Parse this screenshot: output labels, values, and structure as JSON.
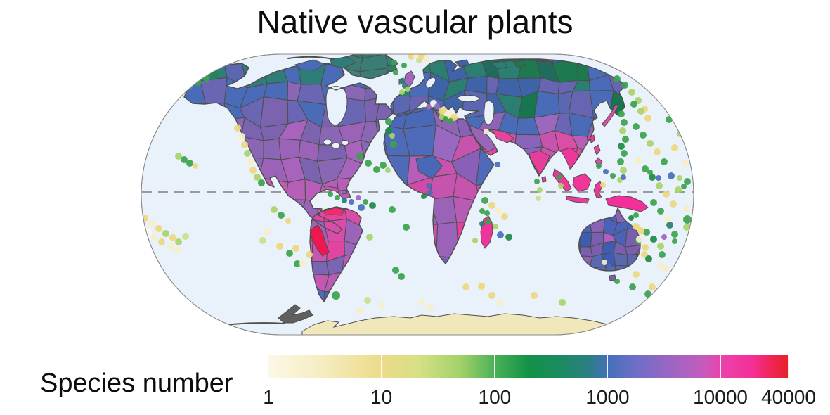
{
  "title": "Native vascular plants",
  "legend": {
    "label": "Species number",
    "scale": "log10",
    "min": 1,
    "max": 40000,
    "ticks": [
      {
        "label": "1",
        "f": 0.0
      },
      {
        "label": "10",
        "f": 0.217
      },
      {
        "label": "100",
        "f": 0.435
      },
      {
        "label": "1000",
        "f": 0.652
      },
      {
        "label": "10000",
        "f": 0.869
      },
      {
        "label": "40000",
        "f": 1.0
      }
    ],
    "gradient": [
      {
        "f": 0.0,
        "c": "#fcf8e6"
      },
      {
        "f": 0.1,
        "c": "#f6edc2"
      },
      {
        "f": 0.217,
        "c": "#eddb8a"
      },
      {
        "f": 0.29,
        "c": "#d5e085"
      },
      {
        "f": 0.37,
        "c": "#a3d168"
      },
      {
        "f": 0.435,
        "c": "#4bb158"
      },
      {
        "f": 0.5,
        "c": "#129247"
      },
      {
        "f": 0.565,
        "c": "#1c8a62"
      },
      {
        "f": 0.615,
        "c": "#2a7f84"
      },
      {
        "f": 0.652,
        "c": "#4270b8"
      },
      {
        "f": 0.7,
        "c": "#6a6fc6"
      },
      {
        "f": 0.775,
        "c": "#9d65c3"
      },
      {
        "f": 0.835,
        "c": "#c35cbd"
      },
      {
        "f": 0.869,
        "c": "#e844ab"
      },
      {
        "f": 0.93,
        "c": "#f62f97"
      },
      {
        "f": 0.97,
        "c": "#ee2450"
      },
      {
        "f": 1.0,
        "c": "#e82128"
      }
    ]
  },
  "map": {
    "ocean": "#e9f1fa",
    "outline": "#8a8a8a",
    "coast": "#4d4d4d",
    "equator": "#9a9a9a",
    "dot_colors": {
      "g": "#3aa34c",
      "dg": "#1e8a45",
      "lg": "#a8d467",
      "pg": "#cbe08a",
      "y": "#ecd87e",
      "c": "#f6efca",
      "w": "#fbf8e8",
      "b": "#4a6cb8",
      "p": "#9a68c0",
      "t": "#2a7f72",
      "m": "#d94fa6"
    },
    "regions": {
      "north-america": {
        "cell": 28,
        "bands": [
          [
            "#2f7d78",
            "#4a6cb8",
            "#5b67b0",
            "#3b7d74"
          ],
          [
            "#6b66b4",
            "#8a67b4",
            "#4a6cb8",
            "#7b63b0"
          ],
          [
            "#9a63b8",
            "#8a67b4",
            "#a863bc",
            "#7b63b0"
          ],
          [
            "#b75fb8",
            "#c45cae",
            "#9a63b8",
            "#c25fb4"
          ],
          [
            "#d14fa8",
            "#c94fa0",
            "#dd4aa4",
            "#c45cae"
          ]
        ]
      },
      "greenland": {
        "cell": 30,
        "bands": [
          [
            "#3b7d74",
            "#35766b",
            "#41837a"
          ]
        ]
      },
      "south-america": {
        "cell": 24,
        "bands": [
          [
            "#e0459f",
            "#c653ac",
            "#d94da8",
            "#b75fb8"
          ],
          [
            "#d94da8",
            "#c258b1",
            "#9c63bb",
            "#e0459f"
          ],
          [
            "#9c63bb",
            "#b85bb4",
            "#c258b1",
            "#7a64b4"
          ],
          [
            "#5a67b4",
            "#4a68b0",
            "#7a64b4",
            "#3f68b0"
          ]
        ]
      },
      "eurasia": {
        "cell": 26,
        "bands": [
          [
            "#2a7f72",
            "#1d7a4f",
            "#3f63a8",
            "#2f7d78",
            "#4a6cb8",
            "#1f6b5e"
          ],
          [
            "#4a6cb8",
            "#5b67b0",
            "#2a7f72",
            "#6765b2",
            "#3f63a8",
            "#17764d"
          ],
          [
            "#8b64b4",
            "#6b66b4",
            "#9a68bc",
            "#4a6cb8",
            "#7b63b0",
            "#9c68c0"
          ],
          [
            "#c653ac",
            "#9a64b8",
            "#e8449f",
            "#8a63bc",
            "#b75fb8",
            "#d94fa6"
          ],
          [
            "#e83e9b",
            "#f0369a",
            "#d94fa6",
            "#c653ac",
            "#e8449f",
            "#ef3b99"
          ]
        ]
      },
      "africa": {
        "cell": 34,
        "bands": [
          [
            "#8e64b4",
            "#9a68c0",
            "#4a68b8",
            "#8a5fb8",
            "#9c64b8"
          ],
          [
            "#4f6ab8",
            "#9a68c0",
            "#c653ae",
            "#8a5fb8",
            "#b75fb8"
          ],
          [
            "#e33d9c",
            "#d14aa8",
            "#e03fa0",
            "#c653ae",
            "#ef3b99"
          ],
          [
            "#c653ae",
            "#9a63b8",
            "#e83f9f",
            "#b85bb4",
            "#d14aa8"
          ],
          [
            "#4a68b4",
            "#7a5fb0",
            "#9a63b8",
            "#1d8a50",
            "#3f68b0"
          ]
        ]
      },
      "australia": {
        "cell": 17,
        "bands": [
          [
            "#8a63b4",
            "#7a5fae",
            "#4a63b8",
            "#2a7f80"
          ],
          [
            "#4a63b8",
            "#3f5cb0",
            "#b35fc0",
            "#7a5fae"
          ],
          [
            "#3f5cb0",
            "#5b67b0",
            "#8a63b4",
            "#4a63b8"
          ]
        ]
      }
    },
    "patches": {
      "peru": "#f0164e",
      "venezuela": "#ef2d6d",
      "india": "#e83e9b",
      "indochina": "#f0369a",
      "arabia": "#9a64b8",
      "iran": "#e8449f",
      "sahara-blue": "#4a68b8",
      "madagascar": "#ef359c",
      "new-guinea": "#f3309a",
      "borneo": "#f0369a",
      "sumatra": "#f0369a",
      "java": "#e83e9b",
      "sulawesi": "#f0369a",
      "philippines-1": "#e0459f",
      "philippines-2": "#d94fa6",
      "taiwan": "#f0369a",
      "japan": "#d94fa6",
      "cuba": "#c653ac",
      "hispaniola": "#9a68c0",
      "uk": "#a565bb",
      "ireland": "#a565bb",
      "iceland": "#2f8060",
      "new-zealand-1": "#4a6bb4",
      "new-zealand-2": "#4a6bb4",
      "tasmania": "#7a5fae",
      "sri-lanka": "#e0459f",
      "antarctica": "#f0e7ba",
      "antarctic-peninsula": "#5f5f5f",
      "arctic-1": "#2a7f72",
      "arctic-2": "#1d7a4f",
      "arctic-3": "#3f63a8",
      "can-arctic-1": "#4a6cb8",
      "can-arctic-2": "#2f7d78"
    },
    "dots": [
      [
        207,
        160,
        5,
        "g"
      ],
      [
        216,
        152,
        5,
        "g"
      ],
      [
        226,
        146,
        5,
        "g"
      ],
      [
        237,
        140,
        5,
        "g"
      ],
      [
        248,
        134,
        5,
        "dg"
      ],
      [
        259,
        128,
        5,
        "g"
      ],
      [
        270,
        122,
        5,
        "g"
      ],
      [
        282,
        117,
        5,
        "g"
      ],
      [
        294,
        112,
        5,
        "g"
      ],
      [
        306,
        107,
        5,
        "dg"
      ],
      [
        878,
        112,
        5,
        "g"
      ],
      [
        889,
        121,
        5,
        "g"
      ],
      [
        899,
        131,
        5,
        "lg"
      ],
      [
        908,
        143,
        5,
        "lg"
      ],
      [
        917,
        155,
        5,
        "y"
      ],
      [
        884,
        162,
        5,
        "g"
      ],
      [
        888,
        174,
        5,
        "g"
      ],
      [
        886,
        186,
        5,
        "lg"
      ],
      [
        890,
        198,
        5,
        "g"
      ],
      [
        884,
        208,
        5,
        "dg"
      ],
      [
        888,
        218,
        5,
        "g"
      ],
      [
        883,
        230,
        5,
        "g"
      ],
      [
        887,
        242,
        5,
        "lg"
      ],
      [
        254,
        222,
        5,
        "lg"
      ],
      [
        262,
        227,
        5,
        "g"
      ],
      [
        270,
        232,
        5,
        "g"
      ],
      [
        278,
        236,
        4,
        "y"
      ],
      [
        338,
        182,
        5,
        "y"
      ],
      [
        344,
        194,
        5,
        "c"
      ],
      [
        348,
        206,
        5,
        "y"
      ],
      [
        352,
        218,
        5,
        "lg"
      ],
      [
        356,
        230,
        5,
        "c"
      ],
      [
        360,
        242,
        5,
        "y"
      ],
      [
        366,
        252,
        5,
        "lg"
      ],
      [
        372,
        260,
        5,
        "g"
      ],
      [
        196,
        302,
        5,
        "c"
      ],
      [
        206,
        310,
        5,
        "y"
      ],
      [
        216,
        318,
        5,
        "c"
      ],
      [
        226,
        325,
        5,
        "y"
      ],
      [
        236,
        332,
        5,
        "lg"
      ],
      [
        246,
        338,
        5,
        "y"
      ],
      [
        210,
        330,
        6,
        "w"
      ],
      [
        220,
        337,
        5,
        "c"
      ],
      [
        230,
        344,
        5,
        "y"
      ],
      [
        243,
        350,
        5,
        "c"
      ],
      [
        254,
        344,
        5,
        "lg"
      ],
      [
        264,
        336,
        5,
        "pg"
      ],
      [
        200,
        344,
        5,
        "y"
      ],
      [
        252,
        356,
        5,
        "c"
      ],
      [
        390,
        298,
        5,
        "lg"
      ],
      [
        400,
        306,
        5,
        "g"
      ],
      [
        410,
        314,
        4,
        "y"
      ],
      [
        380,
        330,
        5,
        "c"
      ],
      [
        374,
        342,
        5,
        "pg"
      ],
      [
        398,
        350,
        5,
        "y"
      ],
      [
        412,
        360,
        5,
        "g"
      ],
      [
        421,
        353,
        5,
        "y"
      ],
      [
        440,
        362,
        5,
        "y"
      ],
      [
        423,
        375,
        5,
        "g"
      ],
      [
        431,
        375,
        5,
        "c"
      ],
      [
        478,
        420,
        6,
        "g"
      ],
      [
        523,
        427,
        5,
        "pg"
      ],
      [
        543,
        434,
        5,
        "c"
      ],
      [
        511,
        441,
        5,
        "c"
      ],
      [
        470,
        276,
        4,
        "g"
      ],
      [
        480,
        281,
        4,
        "g"
      ],
      [
        490,
        285,
        4,
        "t"
      ],
      [
        500,
        287,
        4,
        "b"
      ],
      [
        510,
        281,
        4,
        "p"
      ],
      [
        520,
        287,
        4,
        "g"
      ],
      [
        530,
        292,
        5,
        "dg"
      ],
      [
        514,
        295,
        5,
        "b"
      ],
      [
        512,
        222,
        5,
        "g"
      ],
      [
        524,
        232,
        5,
        "g"
      ],
      [
        536,
        241,
        5,
        "g"
      ],
      [
        560,
        205,
        5,
        "g"
      ],
      [
        558,
        193,
        4,
        "lg"
      ],
      [
        553,
        173,
        5,
        "g"
      ],
      [
        553,
        186,
        5,
        "dg"
      ],
      [
        545,
        235,
        5,
        "g"
      ],
      [
        552,
        242,
        4,
        "lg"
      ],
      [
        610,
        264,
        4,
        "b"
      ],
      [
        612,
        274,
        4,
        "b"
      ],
      [
        603,
        279,
        4,
        "dg"
      ],
      [
        558,
        298,
        5,
        "g"
      ],
      [
        578,
        323,
        5,
        "g"
      ],
      [
        526,
        337,
        5,
        "lg"
      ],
      [
        563,
        384,
        5,
        "g"
      ],
      [
        571,
        393,
        5,
        "g"
      ],
      [
        600,
        430,
        5,
        "c"
      ],
      [
        612,
        438,
        5,
        "c"
      ],
      [
        585,
        80,
        5,
        "y"
      ],
      [
        592,
        78,
        5,
        "c"
      ],
      [
        600,
        80,
        5,
        "y"
      ],
      [
        607,
        84,
        5,
        "c"
      ],
      [
        596,
        86,
        4,
        "pg"
      ],
      [
        561,
        89,
        4,
        "g"
      ],
      [
        563,
        103,
        4,
        "g"
      ],
      [
        572,
        115,
        4,
        "t"
      ],
      [
        576,
        122,
        4,
        "t"
      ],
      [
        580,
        127,
        4,
        "lg"
      ],
      [
        572,
        131,
        4,
        "lg"
      ],
      [
        575,
        93,
        4,
        "g"
      ],
      [
        617,
        147,
        5,
        "w"
      ],
      [
        622,
        151,
        4,
        "p"
      ],
      [
        610,
        152,
        4,
        "p"
      ],
      [
        630,
        158,
        6,
        "y"
      ],
      [
        638,
        163,
        6,
        "c"
      ],
      [
        646,
        167,
        5,
        "y"
      ],
      [
        634,
        169,
        4,
        "g"
      ],
      [
        641,
        172,
        4,
        "g"
      ],
      [
        628,
        166,
        4,
        "lg"
      ],
      [
        692,
        187,
        4,
        "c"
      ],
      [
        708,
        234,
        4,
        "b"
      ],
      [
        690,
        285,
        5,
        "g"
      ],
      [
        700,
        292,
        5,
        "y"
      ],
      [
        710,
        300,
        5,
        "c"
      ],
      [
        718,
        308,
        5,
        "y"
      ],
      [
        695,
        315,
        4,
        "g"
      ],
      [
        705,
        322,
        4,
        "lg"
      ],
      [
        712,
        334,
        5,
        "b"
      ],
      [
        724,
        337,
        5,
        "dg"
      ],
      [
        686,
        300,
        4,
        "g"
      ],
      [
        693,
        303,
        4,
        "g"
      ],
      [
        686,
        318,
        4,
        "t"
      ],
      [
        676,
        342,
        4,
        "lg"
      ],
      [
        663,
        408,
        5,
        "y"
      ],
      [
        685,
        407,
        5,
        "y"
      ],
      [
        700,
        420,
        5,
        "y"
      ],
      [
        712,
        430,
        5,
        "c"
      ],
      [
        760,
        420,
        5,
        "y"
      ],
      [
        800,
        430,
        5,
        "lg"
      ],
      [
        764,
        258,
        4,
        "g"
      ],
      [
        768,
        270,
        4,
        "lg"
      ],
      [
        766,
        282,
        4,
        "pg"
      ],
      [
        796,
        252,
        4,
        "g"
      ],
      [
        798,
        264,
        4,
        "lg"
      ],
      [
        852,
        236,
        4,
        "g"
      ],
      [
        862,
        244,
        4,
        "b"
      ],
      [
        872,
        250,
        4,
        "g"
      ],
      [
        882,
        256,
        4,
        "lg"
      ],
      [
        858,
        263,
        4,
        "y"
      ],
      [
        902,
        148,
        5,
        "g"
      ],
      [
        912,
        158,
        5,
        "lg"
      ],
      [
        922,
        168,
        5,
        "y"
      ],
      [
        905,
        180,
        5,
        "g"
      ],
      [
        915,
        192,
        5,
        "g"
      ],
      [
        925,
        204,
        5,
        "lg"
      ],
      [
        935,
        216,
        5,
        "y"
      ],
      [
        908,
        228,
        5,
        "c"
      ],
      [
        918,
        240,
        5,
        "g"
      ],
      [
        928,
        252,
        5,
        "dg"
      ],
      [
        938,
        264,
        5,
        "lg"
      ],
      [
        948,
        276,
        5,
        "y"
      ],
      [
        930,
        288,
        5,
        "g"
      ],
      [
        940,
        300,
        5,
        "g"
      ],
      [
        950,
        312,
        5,
        "c"
      ],
      [
        958,
        290,
        5,
        "y"
      ],
      [
        965,
        270,
        5,
        "lg"
      ],
      [
        955,
        250,
        5,
        "b"
      ],
      [
        945,
        230,
        5,
        "g"
      ],
      [
        960,
        210,
        5,
        "y"
      ],
      [
        968,
        190,
        5,
        "lg"
      ],
      [
        952,
        170,
        5,
        "g"
      ],
      [
        962,
        150,
        5,
        "pg"
      ],
      [
        975,
        232,
        5,
        "c"
      ],
      [
        978,
        258,
        5,
        "g"
      ],
      [
        937,
        253,
        4,
        "b"
      ],
      [
        887,
        252,
        4,
        "b"
      ],
      [
        925,
        245,
        4,
        "g"
      ],
      [
        967,
        253,
        4,
        "lg"
      ],
      [
        973,
        265,
        4,
        "g"
      ],
      [
        920,
        330,
        5,
        "g"
      ],
      [
        930,
        340,
        5,
        "dg"
      ],
      [
        940,
        350,
        5,
        "lg"
      ],
      [
        918,
        352,
        5,
        "y"
      ],
      [
        908,
        342,
        5,
        "g"
      ],
      [
        953,
        320,
        5,
        "t"
      ],
      [
        960,
        333,
        5,
        "g"
      ],
      [
        977,
        297,
        5,
        "c"
      ],
      [
        978,
        312,
        6,
        "g"
      ],
      [
        977,
        323,
        5,
        "lg"
      ],
      [
        945,
        337,
        4,
        "p"
      ],
      [
        960,
        343,
        4,
        "g"
      ],
      [
        905,
        322,
        5,
        "y"
      ],
      [
        912,
        328,
        5,
        "y"
      ],
      [
        910,
        340,
        5,
        "c"
      ],
      [
        917,
        362,
        5,
        "y"
      ],
      [
        942,
        362,
        5,
        "g"
      ],
      [
        923,
        368,
        5,
        "dg"
      ],
      [
        940,
        377,
        5,
        "c"
      ],
      [
        947,
        382,
        5,
        "c"
      ],
      [
        905,
        390,
        5,
        "y"
      ],
      [
        900,
        408,
        5,
        "g"
      ],
      [
        928,
        408,
        5,
        "y"
      ],
      [
        922,
        418,
        5,
        "g"
      ],
      [
        867,
        380,
        4,
        "b"
      ],
      [
        860,
        373,
        4,
        "c"
      ],
      [
        878,
        400,
        4,
        "g"
      ],
      [
        905,
        306,
        4,
        "g"
      ],
      [
        898,
        310,
        4,
        "dg"
      ],
      [
        930,
        435,
        5,
        "y"
      ],
      [
        920,
        444,
        5,
        "g"
      ],
      [
        945,
        425,
        4,
        "g"
      ]
    ]
  }
}
